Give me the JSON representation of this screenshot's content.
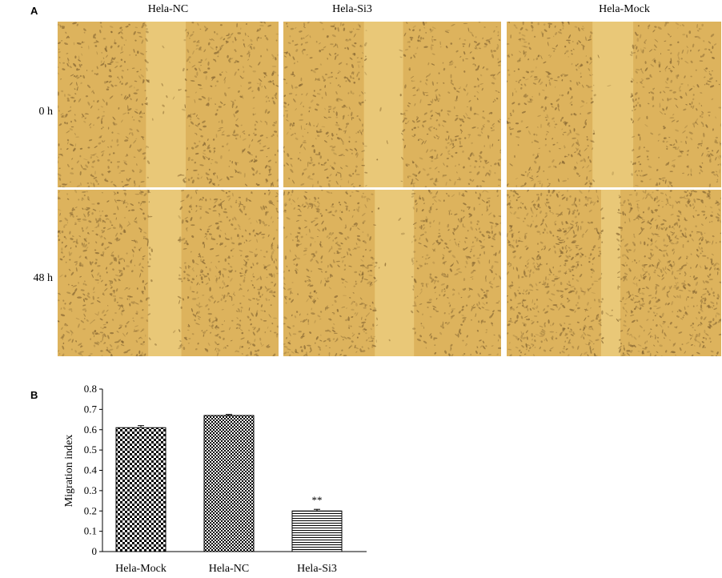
{
  "panel_a": {
    "label": "A",
    "columns": [
      "Hela-NC",
      "Hela-Si3",
      "Hela-Mock"
    ],
    "rows": [
      "0 h",
      "48 h"
    ]
  },
  "panel_b": {
    "label": "B"
  },
  "chart_data": {
    "type": "bar",
    "categories": [
      "Hela-Mock",
      "Hela-NC",
      "Hela-Si3"
    ],
    "values": [
      0.61,
      0.67,
      0.2
    ],
    "errors": [
      0.01,
      0.005,
      0.008
    ],
    "annotations": [
      "",
      "",
      "**"
    ],
    "ylabel": "Migration index",
    "xlabel": "",
    "ylim": [
      0,
      0.8
    ],
    "yticks": [
      0,
      0.1,
      0.2,
      0.3,
      0.4,
      0.5,
      0.6,
      0.7,
      0.8
    ],
    "ytick_labels": [
      "0",
      "0.1",
      "0.2",
      "0.3",
      "0.4",
      "0.5",
      "0.6",
      "0.7",
      "0.8"
    ],
    "fills": [
      "checker-large",
      "checker-small",
      "horizontal-stripes"
    ],
    "grid": false
  },
  "colors": {
    "micrograph_base": "#ddb35d",
    "micrograph_cell": "#8a6a34",
    "scratch": "#e9c878"
  }
}
